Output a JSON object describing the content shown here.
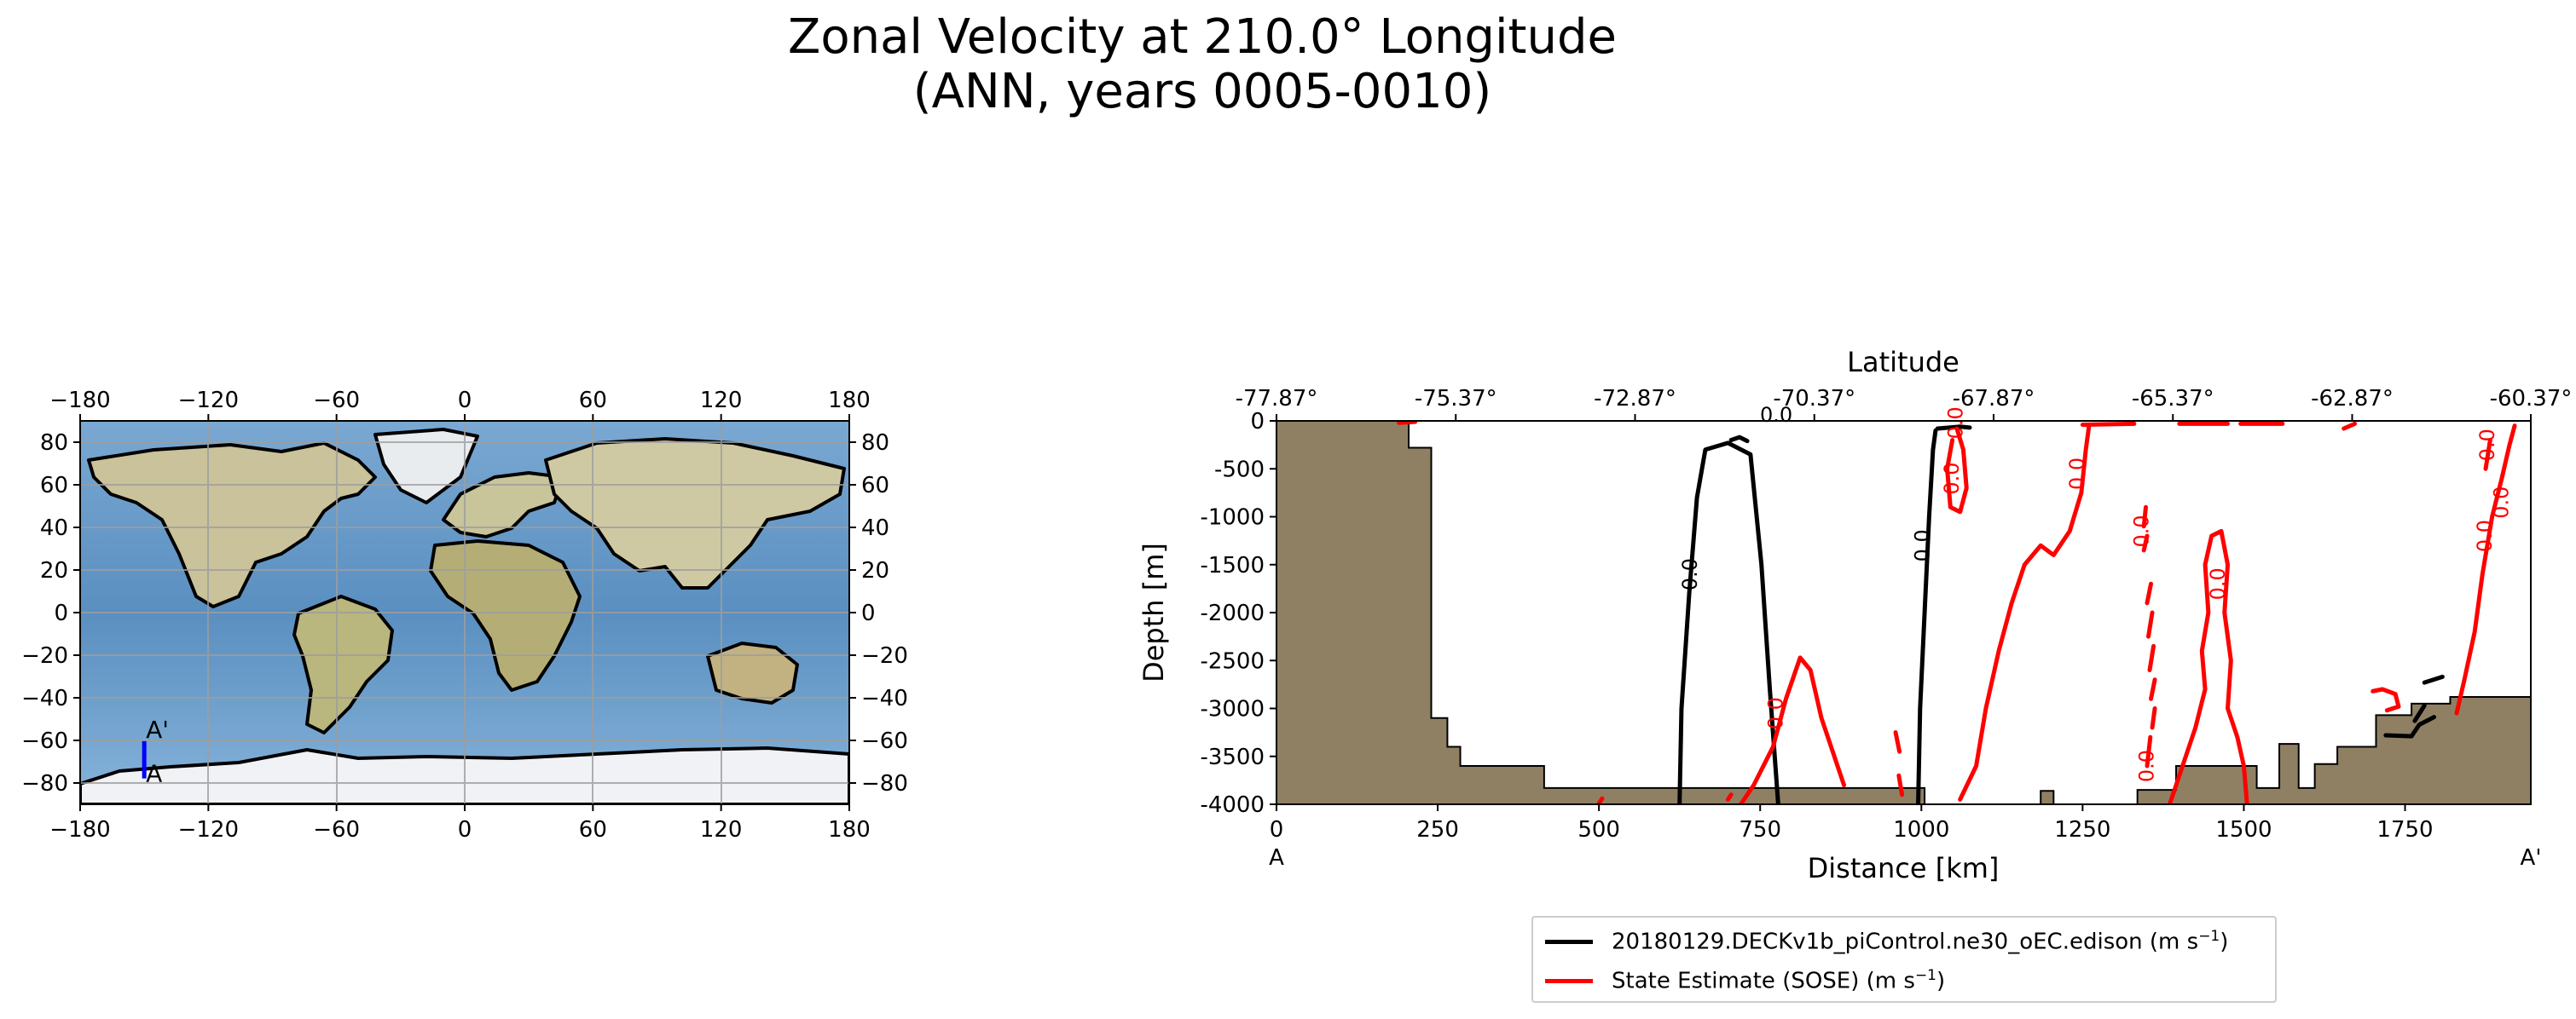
{
  "title": {
    "line1": "Zonal Velocity at 210.0° Longitude",
    "line2": "(ANN, years 0005-0010)"
  },
  "map": {
    "x_ticks": [
      "−180",
      "−120",
      "−60",
      "0",
      "60",
      "120",
      "180"
    ],
    "y_ticks": [
      "80",
      "60",
      "40",
      "20",
      "0",
      "−20",
      "−40",
      "−60",
      "−80"
    ],
    "section_line": {
      "lon": -150,
      "lat_start": -77.87,
      "lat_end": -60.37,
      "color": "#0000ff"
    },
    "label_start": "A",
    "label_end": "A'"
  },
  "chart_data": {
    "type": "contour",
    "xlabel": "Distance [km]",
    "ylabel": "Depth [m]",
    "top_axis_label": "Latitude",
    "xlim": [
      0,
      1945
    ],
    "ylim": [
      -4000,
      0
    ],
    "x_ticks": [
      0,
      250,
      500,
      750,
      1000,
      1250,
      1500,
      1750
    ],
    "y_ticks": [
      0,
      -500,
      -1000,
      -1500,
      -2000,
      -2500,
      -3000,
      -3500,
      -4000
    ],
    "lat_ticks": [
      "-77.87°",
      "-75.37°",
      "-72.87°",
      "-70.37°",
      "-67.87°",
      "-65.37°",
      "-62.87°",
      "-60.37°"
    ],
    "lat_tick_distance_km": [
      0,
      278,
      556,
      834,
      1112,
      1390,
      1668,
      1945
    ],
    "section_start_label": "A",
    "section_end_label": "A'",
    "contour_level": "0.0",
    "bathymetry_color": "#8f8064",
    "bathymetry": [
      [
        0,
        0
      ],
      [
        205,
        0
      ],
      [
        205,
        -280
      ],
      [
        240,
        -280
      ],
      [
        240,
        -3100
      ],
      [
        265,
        -3100
      ],
      [
        265,
        -3400
      ],
      [
        285,
        -3400
      ],
      [
        285,
        -3600
      ],
      [
        415,
        -3600
      ],
      [
        415,
        -3830
      ],
      [
        1005,
        -3830
      ],
      [
        1005,
        -4000
      ],
      [
        1185,
        -4000
      ],
      [
        1185,
        -3860
      ],
      [
        1205,
        -3860
      ],
      [
        1205,
        -4000
      ],
      [
        1335,
        -4000
      ],
      [
        1335,
        -3850
      ],
      [
        1395,
        -3850
      ],
      [
        1395,
        -3600
      ],
      [
        1520,
        -3600
      ],
      [
        1520,
        -3830
      ],
      [
        1555,
        -3830
      ],
      [
        1555,
        -3370
      ],
      [
        1585,
        -3370
      ],
      [
        1585,
        -3830
      ],
      [
        1610,
        -3830
      ],
      [
        1610,
        -3580
      ],
      [
        1645,
        -3580
      ],
      [
        1645,
        -3400
      ],
      [
        1705,
        -3400
      ],
      [
        1705,
        -3070
      ],
      [
        1760,
        -3070
      ],
      [
        1760,
        -2950
      ],
      [
        1820,
        -2950
      ],
      [
        1820,
        -2880
      ],
      [
        1945,
        -2880
      ],
      [
        1945,
        -4000
      ]
    ],
    "series": [
      {
        "name": "20180129.DECKv1b_piControl.ne30_oEC.edison (m s⁻¹)",
        "color": "#000000",
        "contours": [
          [
            [
              625,
              -4000
            ],
            [
              628,
              -3000
            ],
            [
              640,
              -1800
            ],
            [
              652,
              -800
            ],
            [
              665,
              -300
            ],
            [
              700,
              -230
            ],
            [
              735,
              -350
            ],
            [
              752,
              -1500
            ],
            [
              765,
              -2800
            ],
            [
              778,
              -4000
            ]
          ],
          [
            [
              995,
              -4000
            ],
            [
              998,
              -3000
            ],
            [
              1005,
              -2000
            ],
            [
              1012,
              -1000
            ],
            [
              1018,
              -300
            ],
            [
              1022,
              -100
            ]
          ],
          [
            [
              705,
              -200
            ],
            [
              718,
              -170
            ],
            [
              730,
              -210
            ]
          ],
          [
            [
              1025,
              -80
            ],
            [
              1060,
              -60
            ],
            [
              1075,
              -70
            ]
          ],
          [
            [
              1720,
              -3280
            ],
            [
              1760,
              -3290
            ],
            [
              1772,
              -3170
            ],
            [
              1795,
              -3090
            ]
          ],
          [
            [
              1765,
              -3130
            ],
            [
              1780,
              -2970
            ]
          ],
          [
            [
              1780,
              -2730
            ],
            [
              1808,
              -2670
            ]
          ]
        ]
      },
      {
        "name": "State Estimate (SOSE) (m s⁻¹)",
        "color": "#ff0000",
        "contours": [
          [
            [
              720,
              -4000
            ],
            [
              740,
              -3800
            ],
            [
              770,
              -3400
            ],
            [
              790,
              -2900
            ],
            [
              812,
              -2470
            ],
            [
              828,
              -2600
            ],
            [
              845,
              -3100
            ],
            [
              865,
              -3500
            ],
            [
              880,
              -3800
            ]
          ],
          [
            [
              700,
              -3950
            ],
            [
              705,
              -3900
            ]
          ],
          [
            [
              1060,
              -3950
            ],
            [
              1085,
              -3600
            ],
            [
              1100,
              -3000
            ],
            [
              1120,
              -2400
            ],
            [
              1140,
              -1900
            ],
            [
              1160,
              -1500
            ],
            [
              1185,
              -1300
            ],
            [
              1205,
              -1400
            ],
            [
              1230,
              -1150
            ],
            [
              1248,
              -750
            ],
            [
              1255,
              -300
            ],
            [
              1260,
              -50
            ]
          ],
          [
            [
              1055,
              -80
            ],
            [
              1065,
              -300
            ],
            [
              1070,
              -700
            ],
            [
              1060,
              -950
            ],
            [
              1045,
              -900
            ],
            [
              1040,
              -500
            ],
            [
              1048,
              -200
            ]
          ],
          [
            [
              1385,
              -4000
            ],
            [
              1400,
              -3700
            ],
            [
              1410,
              -3500
            ],
            [
              1425,
              -3200
            ],
            [
              1440,
              -2800
            ],
            [
              1435,
              -2400
            ],
            [
              1445,
              -2000
            ],
            [
              1440,
              -1500
            ],
            [
              1450,
              -1200
            ],
            [
              1465,
              -1150
            ],
            [
              1475,
              -1500
            ],
            [
              1470,
              -2000
            ],
            [
              1480,
              -2500
            ],
            [
              1475,
              -3000
            ],
            [
              1490,
              -3300
            ],
            [
              1500,
              -3600
            ],
            [
              1505,
              -4000
            ]
          ],
          [
            [
              1350,
              -3600
            ],
            [
              1355,
              -3300
            ]
          ],
          [
            [
              1358,
              -3200
            ],
            [
              1362,
              -3000
            ]
          ],
          [
            [
              1356,
              -2900
            ],
            [
              1362,
              -2700
            ]
          ],
          [
            [
              1354,
              -2600
            ],
            [
              1360,
              -2350
            ]
          ],
          [
            [
              1352,
              -2250
            ],
            [
              1358,
              -2000
            ]
          ],
          [
            [
              1350,
              -1900
            ],
            [
              1356,
              -1700
            ]
          ],
          [
            [
              1345,
              -1350
            ],
            [
              1350,
              -1200
            ]
          ],
          [
            [
              1345,
              -1100
            ],
            [
              1348,
              -900
            ]
          ],
          [
            [
              1830,
              -3050
            ],
            [
              1842,
              -2700
            ],
            [
              1858,
              -2200
            ],
            [
              1870,
              -1600
            ],
            [
              1885,
              -1000
            ],
            [
              1900,
              -600
            ],
            [
              1912,
              -250
            ],
            [
              1920,
              -50
            ]
          ],
          [
            [
              1875,
              -500
            ],
            [
              1882,
              -200
            ]
          ],
          [
            [
              1655,
              -80
            ],
            [
              1672,
              -30
            ]
          ],
          [
            [
              1700,
              -2820
            ],
            [
              1715,
              -2800
            ],
            [
              1735,
              -2850
            ],
            [
              1740,
              -2980
            ],
            [
              1722,
              -3020
            ]
          ],
          [
            [
              960,
              -3250
            ],
            [
              966,
              -3450
            ]
          ],
          [
            [
              965,
              -3700
            ],
            [
              970,
              -3900
            ]
          ],
          [
            [
              1250,
              -40
            ],
            [
              1330,
              -30
            ]
          ],
          [
            [
              1400,
              -30
            ],
            [
              1475,
              -30
            ]
          ],
          [
            [
              1495,
              -30
            ],
            [
              1560,
              -30
            ]
          ],
          [
            [
              190,
              -20
            ],
            [
              215,
              -10
            ]
          ],
          [
            [
              500,
              -3990
            ],
            [
              505,
              -3940
            ]
          ]
        ]
      }
    ]
  },
  "legend": {
    "entries": [
      {
        "label_main": "20180129.DECKv1b_piControl.ne30_oEC.edison (m s",
        "label_sup": "−1",
        "label_tail": ")",
        "color": "#000000"
      },
      {
        "label_main": "State Estimate (SOSE) (m s",
        "label_sup": "−1",
        "label_tail": ")",
        "color": "#ff0000"
      }
    ]
  }
}
